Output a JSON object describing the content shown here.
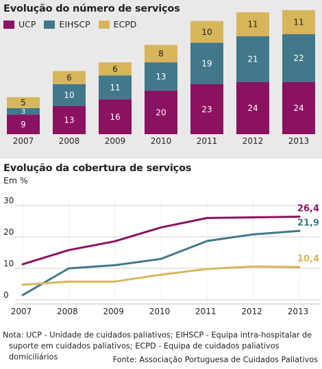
{
  "chart_data": [
    {
      "type": "bar",
      "stacked": true,
      "title": "Evolução do número de serviços",
      "categories": [
        "2007",
        "2008",
        "2009",
        "2010",
        "2011",
        "2012",
        "2013"
      ],
      "series": [
        {
          "name": "UCP",
          "color": "#8b1161",
          "values": [
            9,
            13,
            16,
            20,
            23,
            24,
            24
          ]
        },
        {
          "name": "EIHSCP",
          "color": "#41788a",
          "values": [
            3,
            10,
            11,
            13,
            19,
            21,
            22
          ]
        },
        {
          "name": "ECPD",
          "color": "#d7b55b",
          "values": [
            5,
            6,
            6,
            8,
            10,
            11,
            11
          ]
        }
      ],
      "legend_position": "top-left"
    },
    {
      "type": "line",
      "title": "Evolução da cobertura de serviços",
      "ylabel": "Em %",
      "x": [
        "2007",
        "2008",
        "2009",
        "2010",
        "2011",
        "2012",
        "2013"
      ],
      "yticks": [
        0,
        10,
        20,
        30
      ],
      "ylim": [
        0,
        30
      ],
      "grid": true,
      "series": [
        {
          "color": "#8b1161",
          "points": [
            [
              2007,
              11.3
            ],
            [
              2008,
              15.8
            ],
            [
              2009,
              18.6
            ],
            [
              2010,
              23.0
            ],
            [
              2011,
              26.0
            ],
            [
              2012,
              26.2
            ],
            [
              2013,
              26.4
            ]
          ],
          "end_label": "26,4"
        },
        {
          "color": "#41788a",
          "points": [
            [
              2007,
              1.5
            ],
            [
              2008,
              10.0
            ],
            [
              2009,
              11.0
            ],
            [
              2010,
              13.0
            ],
            [
              2011,
              18.7
            ],
            [
              2012,
              20.8
            ],
            [
              2013,
              21.9
            ]
          ],
          "end_label": "21,9"
        },
        {
          "color": "#d7b55b",
          "points": [
            [
              2007,
              4.8
            ],
            [
              2008,
              5.8
            ],
            [
              2009,
              5.8
            ],
            [
              2010,
              8.0
            ],
            [
              2011,
              9.8
            ],
            [
              2012,
              10.6
            ],
            [
              2013,
              10.4
            ]
          ],
          "end_label": "10,4"
        }
      ]
    }
  ],
  "note": {
    "line1": "Nota: UCP - Unidade de cuidados paliativos; EIHSCP - Equipa intra-hospitalar de",
    "line2": "suporte em cuidados paliativos; ECPD - Equipa de cuidados paliativos domiciliários"
  },
  "source": "Fonte: Associação Portuguesa de Cuidados Paliativos"
}
